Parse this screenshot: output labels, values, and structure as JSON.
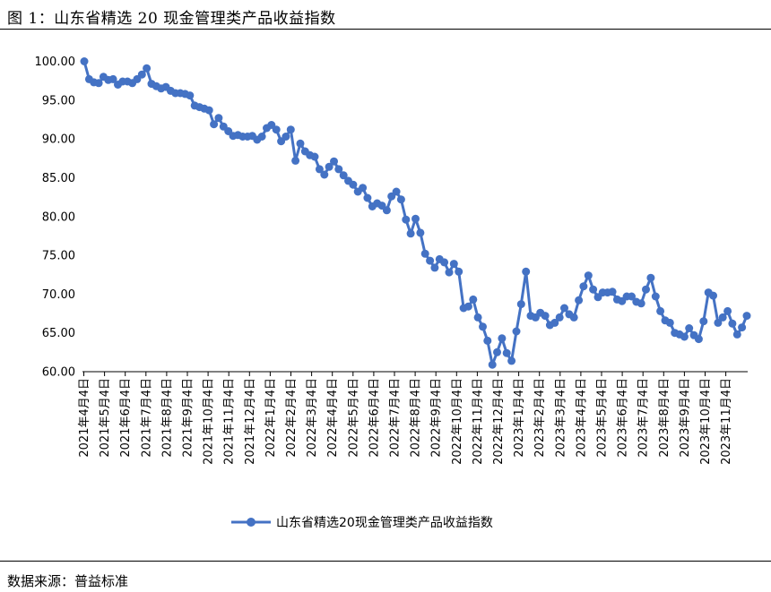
{
  "figure_title": "图 1：山东省精选 20 现金管理类产品收益指数",
  "source_text": "数据来源：普益标准",
  "colors": {
    "series": "#4472C4",
    "axis": "#000000",
    "rule": "#000000"
  },
  "chart_data": {
    "type": "line",
    "title": "",
    "xlabel": "",
    "ylabel": "",
    "ylim": [
      60,
      100
    ],
    "y_ticks": [
      "60.00",
      "65.00",
      "70.00",
      "75.00",
      "80.00",
      "85.00",
      "90.00",
      "95.00",
      "100.00"
    ],
    "x_ticks": [
      "2021年4月4日",
      "2021年5月4日",
      "2021年6月4日",
      "2021年7月4日",
      "2021年8月4日",
      "2021年9月4日",
      "2021年10月4日",
      "2021年11月4日",
      "2021年12月4日",
      "2022年1月4日",
      "2022年2月4日",
      "2022年3月4日",
      "2022年4月4日",
      "2022年5月4日",
      "2022年6月4日",
      "2022年7月4日",
      "2022年8月4日",
      "2022年9月4日",
      "2022年10月4日",
      "2022年11月4日",
      "2022年12月4日",
      "2023年1月4日",
      "2023年2月4日",
      "2023年3月4日",
      "2023年4月4日",
      "2023年5月4日",
      "2023年6月4日",
      "2023年7月4日",
      "2023年8月4日",
      "2023年9月4日",
      "2023年10月4日",
      "2023年11月4日"
    ],
    "grid": false,
    "legend_position": "bottom",
    "series": [
      {
        "name": "山东省精选20现金管理类产品收益指数",
        "values": [
          100.0,
          97.7,
          97.3,
          97.2,
          98.0,
          97.6,
          97.7,
          97.0,
          97.4,
          97.4,
          97.2,
          97.7,
          98.3,
          99.1,
          97.1,
          96.8,
          96.5,
          96.7,
          96.2,
          95.9,
          95.9,
          95.8,
          95.6,
          94.3,
          94.1,
          93.9,
          93.7,
          91.9,
          92.7,
          91.6,
          91.0,
          90.4,
          90.5,
          90.3,
          90.3,
          90.4,
          89.9,
          90.3,
          91.4,
          91.8,
          91.2,
          89.7,
          90.3,
          91.2,
          87.2,
          89.4,
          88.4,
          87.9,
          87.7,
          86.1,
          85.4,
          86.4,
          87.1,
          86.1,
          85.3,
          84.6,
          84.1,
          83.2,
          83.7,
          82.4,
          81.3,
          81.7,
          81.4,
          80.8,
          82.6,
          83.2,
          82.2,
          79.6,
          77.8,
          79.7,
          77.9,
          75.2,
          74.3,
          73.4,
          74.5,
          74.1,
          72.8,
          73.9,
          72.9,
          68.2,
          68.4,
          69.3,
          67.0,
          65.8,
          64.0,
          60.9,
          62.5,
          64.3,
          62.4,
          61.4,
          65.2,
          68.7,
          72.9,
          67.2,
          67.0,
          67.6,
          67.2,
          66.0,
          66.3,
          67.0,
          68.2,
          67.4,
          67.0,
          69.2,
          71.0,
          72.4,
          70.6,
          69.6,
          70.2,
          70.2,
          70.3,
          69.3,
          69.1,
          69.7,
          69.7,
          69.0,
          68.8,
          70.6,
          72.1,
          69.7,
          67.8,
          66.6,
          66.3,
          65.0,
          64.8,
          64.5,
          65.6,
          64.7,
          64.2,
          66.5,
          70.2,
          69.8,
          66.3,
          67.0,
          67.8,
          66.2,
          64.8,
          65.7,
          67.2
        ]
      }
    ]
  }
}
